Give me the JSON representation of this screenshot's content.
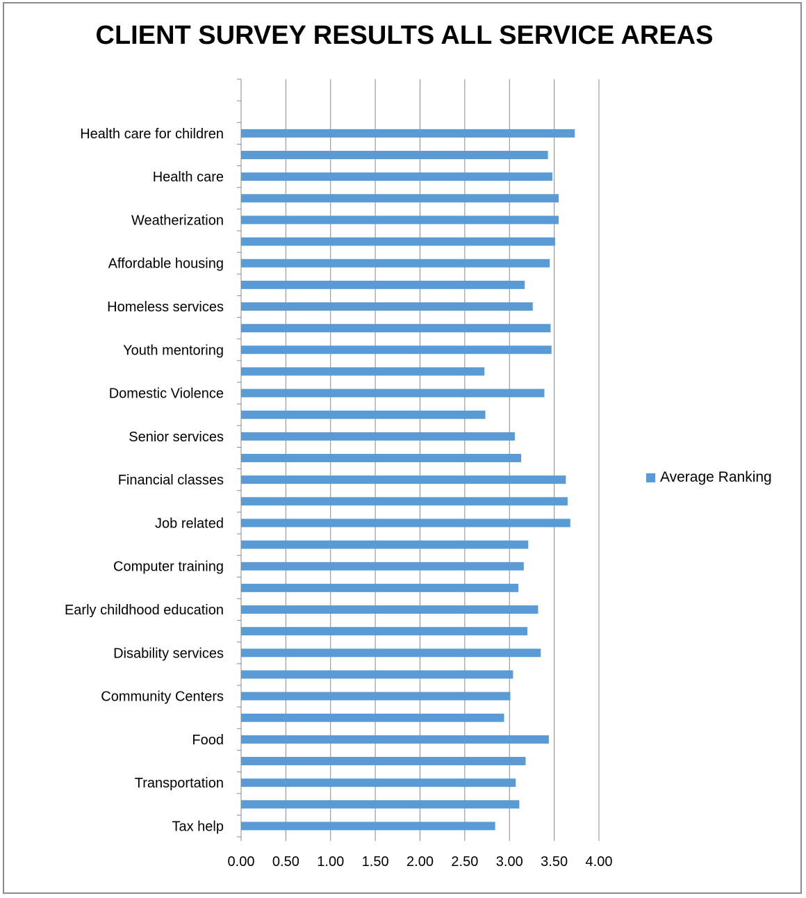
{
  "chart_data": {
    "type": "bar",
    "orientation": "horizontal",
    "title": "CLIENT SURVEY RESULTS ALL SERVICE AREAS",
    "xlabel": "",
    "ylabel": "",
    "xlim": [
      0,
      4
    ],
    "x_ticks": [
      "0.00",
      "0.50",
      "1.00",
      "1.50",
      "2.00",
      "2.50",
      "3.00",
      "3.50",
      "4.00"
    ],
    "grid": true,
    "legend_position": "right",
    "series": [
      {
        "name": "Average Ranking",
        "color": "#5b9bd5"
      }
    ],
    "categories": [
      "Tax help",
      "",
      "Transportation",
      "",
      "Food",
      "",
      "Community Centers",
      "",
      "Disability services",
      "",
      "Early childhood education",
      "",
      "Computer training",
      "",
      "Job related",
      "",
      "Financial classes",
      "",
      "Senior services",
      "",
      "Domestic Violence",
      "",
      "Youth mentoring",
      "",
      "Homeless services",
      "",
      "Affordable housing",
      "",
      "Weatherization",
      "",
      "Health care",
      "",
      "Health care for children",
      "",
      ""
    ],
    "values": [
      2.84,
      3.11,
      3.07,
      3.18,
      3.44,
      2.94,
      3.01,
      3.04,
      3.35,
      3.2,
      3.32,
      3.1,
      3.16,
      3.21,
      3.68,
      3.65,
      3.63,
      3.13,
      3.06,
      2.73,
      3.39,
      2.72,
      3.47,
      3.46,
      3.26,
      3.17,
      3.45,
      3.51,
      3.55,
      3.55,
      3.48,
      3.43,
      3.73,
      null,
      null
    ]
  }
}
